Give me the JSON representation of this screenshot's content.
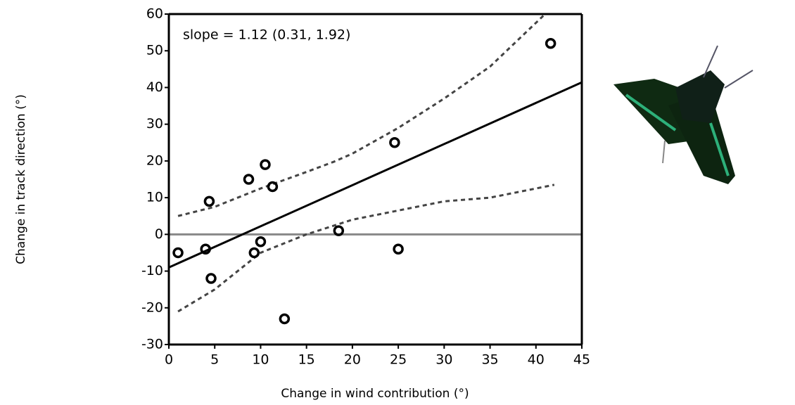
{
  "chart_data": {
    "type": "scatter",
    "annotation": "slope = 1.12 (0.31, 1.92)",
    "xlabel": "Change in wind contribution (°)",
    "ylabel": "Change in track direction (°)",
    "x": [
      1,
      4,
      4.4,
      4.6,
      8.7,
      9.3,
      10,
      10.5,
      11.3,
      12.6,
      18.5,
      24.6,
      25,
      41.6
    ],
    "values": [
      -5,
      -4,
      9,
      -12,
      15,
      -5,
      -2,
      19,
      13,
      -23,
      1,
      25,
      -4,
      52
    ],
    "color": "#000000",
    "fit": {
      "x": [
        0,
        45
      ],
      "values": [
        -9,
        41.4
      ],
      "color": "#000000"
    },
    "ci_upper": {
      "x": [
        1,
        5,
        10,
        15,
        18,
        20,
        25,
        30,
        35,
        41
      ],
      "values": [
        5,
        7.5,
        12.5,
        17,
        19.8,
        22,
        29,
        37,
        45.7,
        60
      ],
      "color": "#444444"
    },
    "ci_lower": {
      "x": [
        1,
        5,
        10,
        15,
        20,
        25,
        30,
        35,
        40,
        42
      ],
      "values": [
        -21,
        -15,
        -5,
        0,
        4,
        6.5,
        9,
        10,
        12.5,
        13.5
      ],
      "color": "#444444"
    },
    "reference_line": 0,
    "xlim": [
      0,
      45
    ],
    "xticks": [
      0,
      5,
      10,
      15,
      20,
      25,
      30,
      35,
      40,
      45
    ],
    "ylim": [
      -30,
      60
    ],
    "yticks": [
      -30,
      -20,
      -10,
      0,
      10,
      20,
      30,
      40,
      50,
      60
    ]
  }
}
